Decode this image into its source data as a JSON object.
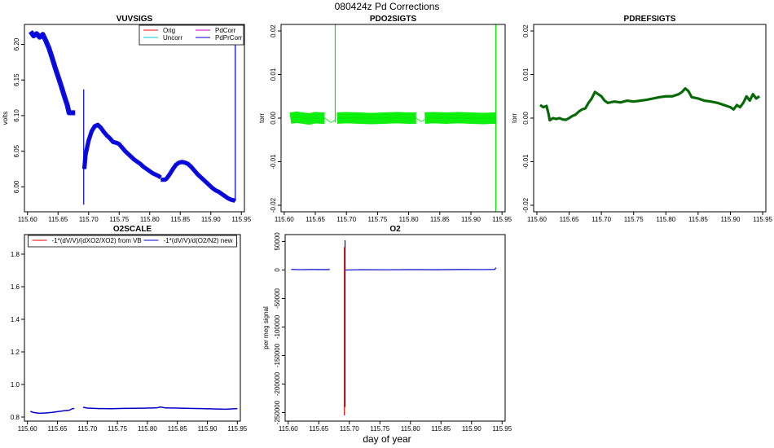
{
  "figure": {
    "title": "080424z   Pd Corrections",
    "xlabel": "day of year"
  },
  "chart_data": [
    {
      "id": "vuvsigs",
      "type": "line",
      "title": "VUVSIGS",
      "xlabel": "",
      "ylabel": "volts",
      "xlim": [
        115.595,
        115.955
      ],
      "ylim": [
        5.965,
        6.228
      ],
      "xticks": [
        115.6,
        115.65,
        115.7,
        115.75,
        115.8,
        115.85,
        115.9,
        115.95
      ],
      "xtick_labels": [
        "115.60",
        "115.65",
        "115.70",
        "115.75",
        "115.80",
        "115.85",
        "115.90",
        "115.95"
      ],
      "yticks": [
        6.0,
        6.05,
        6.1,
        6.15,
        6.2
      ],
      "ytick_labels": [
        "6.00",
        "6.05",
        "6.10",
        "6.15",
        "6.20"
      ],
      "ytick_rotate": true,
      "legend": {
        "position": "top-right",
        "columns": 2,
        "entries": [
          {
            "label": "Orig",
            "color": "#ff0000"
          },
          {
            "label": "PdCorr",
            "color": "#cc00cc"
          },
          {
            "label": "Uncorr",
            "color": "#00cccc"
          },
          {
            "label": "PdPrCorr",
            "color": "#0000cc"
          }
        ]
      },
      "series": [
        {
          "name": "PdPrCorr",
          "color": "#0000dd",
          "width": 1.2,
          "band": 0.0035,
          "x": [
            115.605,
            115.61,
            115.615,
            115.62,
            115.625,
            115.63,
            115.635,
            115.64,
            115.645,
            115.65,
            115.655,
            115.66,
            115.665,
            115.668,
            115.672,
            115.678
          ],
          "y": [
            6.218,
            6.212,
            6.215,
            6.21,
            6.214,
            6.205,
            6.195,
            6.182,
            6.168,
            6.155,
            6.142,
            6.128,
            6.115,
            6.104,
            6.104,
            6.104
          ]
        },
        {
          "name": "PdPrCorr-spike1",
          "color": "#0000dd",
          "width": 1.2,
          "band": 0,
          "x": [
            115.692,
            115.692
          ],
          "y": [
            5.975,
            6.137
          ]
        },
        {
          "name": "PdPrCorr-2",
          "color": "#0000dd",
          "width": 1.2,
          "band": 0.003,
          "x": [
            115.693,
            115.695,
            115.7,
            115.705,
            115.71,
            115.715,
            115.72,
            115.725,
            115.73,
            115.735,
            115.74,
            115.745,
            115.75,
            115.755,
            115.76,
            115.765,
            115.77,
            115.775,
            115.78,
            115.785,
            115.79,
            115.795,
            115.8,
            115.805,
            115.81,
            115.815,
            115.818
          ],
          "y": [
            6.025,
            6.045,
            6.065,
            6.078,
            6.085,
            6.087,
            6.083,
            6.077,
            6.072,
            6.068,
            6.063,
            6.062,
            6.06,
            6.055,
            6.05,
            6.046,
            6.042,
            6.038,
            6.035,
            6.032,
            6.028,
            6.025,
            6.022,
            6.019,
            6.017,
            6.015,
            6.013
          ]
        },
        {
          "name": "PdPrCorr-3",
          "color": "#0000dd",
          "width": 1.2,
          "band": 0.003,
          "x": [
            115.818,
            115.82,
            115.825,
            115.828,
            115.833,
            115.838,
            115.843,
            115.848,
            115.853,
            115.858,
            115.863,
            115.868,
            115.873,
            115.878,
            115.883,
            115.888,
            115.893,
            115.898,
            115.903,
            115.908,
            115.913,
            115.918,
            115.923,
            115.928,
            115.933,
            115.938,
            115.94
          ],
          "y": [
            6.01,
            6.01,
            6.01,
            6.012,
            6.018,
            6.025,
            6.031,
            6.034,
            6.035,
            6.034,
            6.032,
            6.028,
            6.023,
            6.018,
            6.014,
            6.01,
            6.006,
            6.002,
            5.998,
            5.995,
            5.993,
            5.99,
            5.987,
            5.984,
            5.982,
            5.981,
            5.98
          ]
        },
        {
          "name": "PdPrCorr-spike2",
          "color": "#0000dd",
          "width": 1.2,
          "band": 0,
          "x": [
            115.94,
            115.94
          ],
          "y": [
            5.98,
            6.205
          ]
        }
      ]
    },
    {
      "id": "pdo2sigts",
      "type": "line",
      "title": "PDO2SIGTS",
      "xlabel": "",
      "ylabel": "torr",
      "xlim": [
        115.595,
        115.955
      ],
      "ylim": [
        -0.0215,
        0.0215
      ],
      "xticks": [
        115.6,
        115.65,
        115.7,
        115.75,
        115.8,
        115.85,
        115.9,
        115.95
      ],
      "xtick_labels": [
        "115.60",
        "115.65",
        "115.70",
        "115.75",
        "115.80",
        "115.85",
        "115.90",
        "115.95"
      ],
      "yticks": [
        -0.02,
        -0.01,
        0.0,
        0.01,
        0.02
      ],
      "ytick_labels": [
        "-0.02",
        "-0.01",
        "0.00",
        "0.01",
        "0.02"
      ],
      "ytick_rotate": true,
      "series": [
        {
          "name": "PdO2",
          "color": "#00ee00",
          "width": 1,
          "band": 0.0013,
          "x": [
            115.61,
            115.62,
            115.63,
            115.64,
            115.65,
            115.66,
            115.665
          ],
          "y": [
            0.0,
            0.0002,
            0.0,
            -0.0002,
            0.0001,
            0.0,
            0.0
          ]
        },
        {
          "name": "PdO2-gap1",
          "color": "#00ee00",
          "width": 0.8,
          "band": 0,
          "x": [
            115.665,
            115.675,
            115.683
          ],
          "y": [
            0.0,
            -0.001,
            -0.0003
          ]
        },
        {
          "name": "PdO2-2",
          "color": "#00ee00",
          "width": 1,
          "band": 0.0013,
          "x": [
            115.685,
            115.7,
            115.72,
            115.74,
            115.76,
            115.78,
            115.8,
            115.812
          ],
          "y": [
            0.0,
            0.0001,
            0.0,
            -0.0001,
            0.0,
            0.0001,
            0.0,
            0.0
          ]
        },
        {
          "name": "PdO2-gap2",
          "color": "#00ee00",
          "width": 0.8,
          "band": 0,
          "x": [
            115.812,
            115.82,
            115.826
          ],
          "y": [
            0.0,
            -0.0008,
            -0.0003
          ]
        },
        {
          "name": "PdO2-3",
          "color": "#00ee00",
          "width": 1,
          "band": 0.0013,
          "x": [
            115.826,
            115.84,
            115.86,
            115.88,
            115.9,
            115.92,
            115.935,
            115.94
          ],
          "y": [
            0.0,
            0.0001,
            0.0,
            0.0001,
            0.0,
            -0.0001,
            0.0,
            0.0
          ]
        },
        {
          "name": "PdO2-spike1",
          "color": "#00ee00",
          "width": 1.2,
          "band": 0,
          "x": [
            115.682,
            115.682
          ],
          "y": [
            -0.001,
            0.0215
          ]
        },
        {
          "name": "PdO2-spike2",
          "color": "#00ee00",
          "width": 1.2,
          "band": 0,
          "x": [
            115.94,
            115.94
          ],
          "y": [
            -0.0215,
            0.0215
          ]
        }
      ]
    },
    {
      "id": "pdrefsigts",
      "type": "line",
      "title": "PDREFSIGTS",
      "xlabel": "",
      "ylabel": "torr",
      "xlim": [
        115.595,
        115.955
      ],
      "ylim": [
        -0.0215,
        0.0215
      ],
      "xticks": [
        115.6,
        115.65,
        115.7,
        115.75,
        115.8,
        115.85,
        115.9,
        115.95
      ],
      "xtick_labels": [
        "115.60",
        "115.65",
        "115.70",
        "115.75",
        "115.80",
        "115.85",
        "115.90",
        "115.95"
      ],
      "yticks": [
        -0.02,
        -0.01,
        0.0,
        0.01,
        0.02
      ],
      "ytick_labels": [
        "-0.02",
        "-0.01",
        "0.00",
        "0.01",
        "0.02"
      ],
      "ytick_rotate": true,
      "series": [
        {
          "name": "PdRef",
          "color": "#006600",
          "width": 1.1,
          "band": 0.0003,
          "x": [
            115.605,
            115.61,
            115.615,
            115.618,
            115.62,
            115.625,
            115.63,
            115.635,
            115.64,
            115.645,
            115.65,
            115.655,
            115.66,
            115.665,
            115.67,
            115.675,
            115.68,
            115.685,
            115.69,
            115.695,
            115.7,
            115.705,
            115.71,
            115.72,
            115.73,
            115.74,
            115.75,
            115.76,
            115.77,
            115.78,
            115.79,
            115.8,
            115.81,
            115.82,
            115.825,
            115.83,
            115.835,
            115.84,
            115.85,
            115.86,
            115.87,
            115.88,
            115.89,
            115.9,
            115.905,
            115.91,
            115.915,
            115.92,
            115.925,
            115.93,
            115.935,
            115.94,
            115.945
          ],
          "y": [
            0.003,
            0.0025,
            0.0028,
            0.001,
            -0.0005,
            0.0,
            -0.0002,
            0.0,
            -0.0003,
            -0.0004,
            0.0,
            0.0005,
            0.0008,
            0.0015,
            0.002,
            0.0022,
            0.0035,
            0.0045,
            0.006,
            0.0055,
            0.005,
            0.004,
            0.0035,
            0.0038,
            0.0036,
            0.004,
            0.0038,
            0.004,
            0.0042,
            0.0045,
            0.0048,
            0.005,
            0.005,
            0.0055,
            0.006,
            0.0068,
            0.0062,
            0.0048,
            0.0045,
            0.004,
            0.0038,
            0.0035,
            0.003,
            0.0025,
            0.002,
            0.003,
            0.0025,
            0.0035,
            0.005,
            0.004,
            0.0055,
            0.0045,
            0.005
          ]
        }
      ]
    },
    {
      "id": "o2scale",
      "type": "line",
      "title": "O2SCALE",
      "xlabel": "",
      "ylabel": "",
      "xlim": [
        115.595,
        115.955
      ],
      "ylim": [
        0.775,
        1.92
      ],
      "xticks": [
        115.6,
        115.65,
        115.7,
        115.75,
        115.8,
        115.85,
        115.9,
        115.95
      ],
      "xtick_labels": [
        "115.60",
        "115.65",
        "115.70",
        "115.75",
        "115.80",
        "115.85",
        "115.90",
        "115.95"
      ],
      "yticks": [
        0.8,
        1.0,
        1.2,
        1.4,
        1.6,
        1.8
      ],
      "ytick_labels": [
        "0.8",
        "1.0",
        "1.2",
        "1.4",
        "1.6",
        "1.8"
      ],
      "ytick_rotate": false,
      "legend": {
        "position": "top",
        "columns": 2,
        "entries": [
          {
            "label": "-1*(dV/V)/(dXO2/XO2) from VB",
            "color": "#ff0000"
          },
          {
            "label": "-1*(dV/V)/d(O2/N2) new",
            "color": "#0000cc"
          }
        ]
      },
      "series": [
        {
          "name": "from VB",
          "color": "#ee0000",
          "width": 1.8,
          "band": 0,
          "x": [
            115.693,
            115.697,
            115.705,
            115.72,
            115.74,
            115.76,
            115.78,
            115.8,
            115.815,
            115.822,
            115.828,
            115.835,
            115.85,
            115.87,
            115.89,
            115.91,
            115.93,
            115.95
          ],
          "y": [
            1.85,
            1.862,
            1.87,
            1.872,
            1.871,
            1.87,
            1.869,
            1.868,
            1.866,
            1.848,
            1.855,
            1.868,
            1.87,
            1.871,
            1.87,
            1.869,
            1.868,
            1.867
          ]
        },
        {
          "name": "new",
          "color": "#0000cc",
          "width": 1.5,
          "band": 0,
          "x": [
            115.605,
            115.61,
            115.62,
            115.63,
            115.64,
            115.65,
            115.66,
            115.67,
            115.675,
            115.678
          ],
          "y": [
            0.835,
            0.828,
            0.823,
            0.825,
            0.828,
            0.833,
            0.838,
            0.842,
            0.852,
            0.852
          ]
        },
        {
          "name": "new-2",
          "color": "#0000cc",
          "width": 1.5,
          "band": 0,
          "x": [
            115.693,
            115.7,
            115.72,
            115.74,
            115.76,
            115.78,
            115.8,
            115.815,
            115.822,
            115.83,
            115.85,
            115.87,
            115.89,
            115.91,
            115.93,
            115.95
          ],
          "y": [
            0.86,
            0.855,
            0.852,
            0.851,
            0.853,
            0.854,
            0.855,
            0.856,
            0.862,
            0.856,
            0.855,
            0.853,
            0.852,
            0.85,
            0.848,
            0.852
          ]
        }
      ]
    },
    {
      "id": "o2",
      "type": "line",
      "title": "O2",
      "xlabel": "",
      "ylabel": "per meg signal",
      "xlim": [
        115.595,
        115.955
      ],
      "ylim": [
        -265000,
        62000
      ],
      "xticks": [
        115.6,
        115.65,
        115.7,
        115.75,
        115.8,
        115.85,
        115.9,
        115.95
      ],
      "xtick_labels": [
        "115.60",
        "115.65",
        "115.70",
        "115.75",
        "115.80",
        "115.85",
        "115.90",
        "115.95"
      ],
      "yticks": [
        -250000,
        -200000,
        -150000,
        -100000,
        -50000,
        0,
        50000
      ],
      "ytick_labels": [
        "-250000",
        "-200000",
        "-150000",
        "-100000",
        "-50000",
        "0",
        "50000"
      ],
      "ytick_rotate": true,
      "series": [
        {
          "name": "O2-red",
          "color": "#ee0000",
          "width": 1.2,
          "band": 0,
          "x": [
            115.692,
            115.692
          ],
          "y": [
            -255000,
            40000
          ]
        },
        {
          "name": "O2-blue-1",
          "color": "#0000cc",
          "width": 1.2,
          "band": 0,
          "x": [
            115.605,
            115.62,
            115.64,
            115.66,
            115.668
          ],
          "y": [
            1000,
            500,
            800,
            600,
            800
          ]
        },
        {
          "name": "O2-blue-spike",
          "color": "#0000cc",
          "width": 1.2,
          "band": 0,
          "x": [
            115.693,
            115.693
          ],
          "y": [
            -240000,
            52000
          ]
        },
        {
          "name": "O2-blue-2",
          "color": "#0000cc",
          "width": 1.2,
          "band": 0,
          "x": [
            115.694,
            115.72,
            115.76,
            115.8,
            115.84,
            115.88,
            115.92,
            115.938,
            115.94
          ],
          "y": [
            0,
            500,
            300,
            600,
            400,
            800,
            700,
            1000,
            4000
          ]
        }
      ]
    }
  ]
}
